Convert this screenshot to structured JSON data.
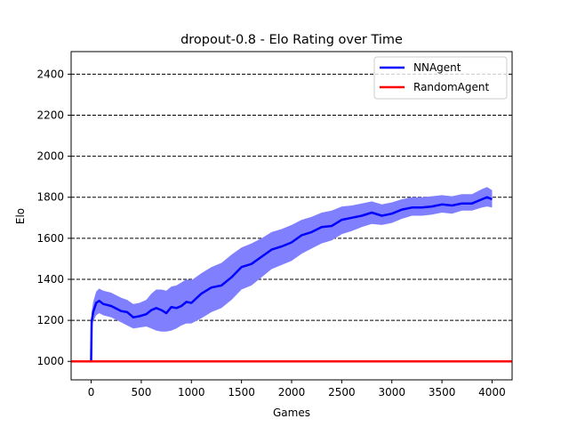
{
  "chart_data": {
    "type": "line",
    "title": "dropout-0.8 - Elo Rating over Time",
    "xlabel": "Games",
    "ylabel": "Elo",
    "xlim": [
      -200,
      4200
    ],
    "ylim": [
      910,
      2510
    ],
    "xticks": [
      0,
      500,
      1000,
      1500,
      2000,
      2500,
      3000,
      3500,
      4000
    ],
    "yticks": [
      1000,
      1200,
      1400,
      1600,
      1800,
      2000,
      2200,
      2400
    ],
    "grid": "horizontal dashed",
    "legend_position": "top-right",
    "series": [
      {
        "name": "NNAgent",
        "color": "#0000ff",
        "band_color": "#8080ff",
        "x": [
          0,
          5,
          20,
          50,
          80,
          120,
          200,
          300,
          360,
          420,
          480,
          550,
          600,
          650,
          700,
          750,
          800,
          850,
          900,
          950,
          1000,
          1100,
          1200,
          1300,
          1400,
          1500,
          1600,
          1700,
          1800,
          1900,
          2000,
          2100,
          2200,
          2300,
          2400,
          2500,
          2600,
          2700,
          2800,
          2900,
          3000,
          3100,
          3200,
          3300,
          3400,
          3500,
          3600,
          3700,
          3800,
          3900,
          3950,
          4000
        ],
        "y": [
          1000,
          1195,
          1240,
          1285,
          1295,
          1280,
          1270,
          1245,
          1240,
          1215,
          1220,
          1230,
          1250,
          1260,
          1250,
          1235,
          1265,
          1260,
          1270,
          1290,
          1285,
          1330,
          1360,
          1370,
          1410,
          1460,
          1475,
          1510,
          1545,
          1560,
          1580,
          1615,
          1630,
          1655,
          1660,
          1690,
          1700,
          1710,
          1725,
          1710,
          1720,
          1740,
          1750,
          1750,
          1755,
          1765,
          1760,
          1770,
          1770,
          1790,
          1800,
          1790
        ],
        "lower": [
          1000,
          1150,
          1195,
          1225,
          1235,
          1225,
          1215,
          1190,
          1175,
          1160,
          1165,
          1170,
          1160,
          1150,
          1145,
          1145,
          1150,
          1160,
          1175,
          1185,
          1185,
          1210,
          1240,
          1260,
          1300,
          1350,
          1370,
          1410,
          1450,
          1470,
          1490,
          1525,
          1550,
          1575,
          1590,
          1620,
          1635,
          1655,
          1670,
          1665,
          1675,
          1695,
          1710,
          1710,
          1715,
          1725,
          1720,
          1735,
          1735,
          1750,
          1755,
          1750
        ],
        "upper": [
          1000,
          1240,
          1290,
          1340,
          1355,
          1345,
          1335,
          1310,
          1300,
          1280,
          1285,
          1300,
          1330,
          1350,
          1350,
          1345,
          1365,
          1370,
          1385,
          1400,
          1395,
          1430,
          1460,
          1480,
          1520,
          1555,
          1575,
          1600,
          1630,
          1645,
          1665,
          1690,
          1705,
          1725,
          1735,
          1755,
          1760,
          1770,
          1780,
          1765,
          1775,
          1790,
          1800,
          1800,
          1805,
          1810,
          1805,
          1815,
          1815,
          1840,
          1850,
          1835
        ]
      },
      {
        "name": "RandomAgent",
        "color": "#ff0000",
        "y": 1000
      }
    ]
  }
}
